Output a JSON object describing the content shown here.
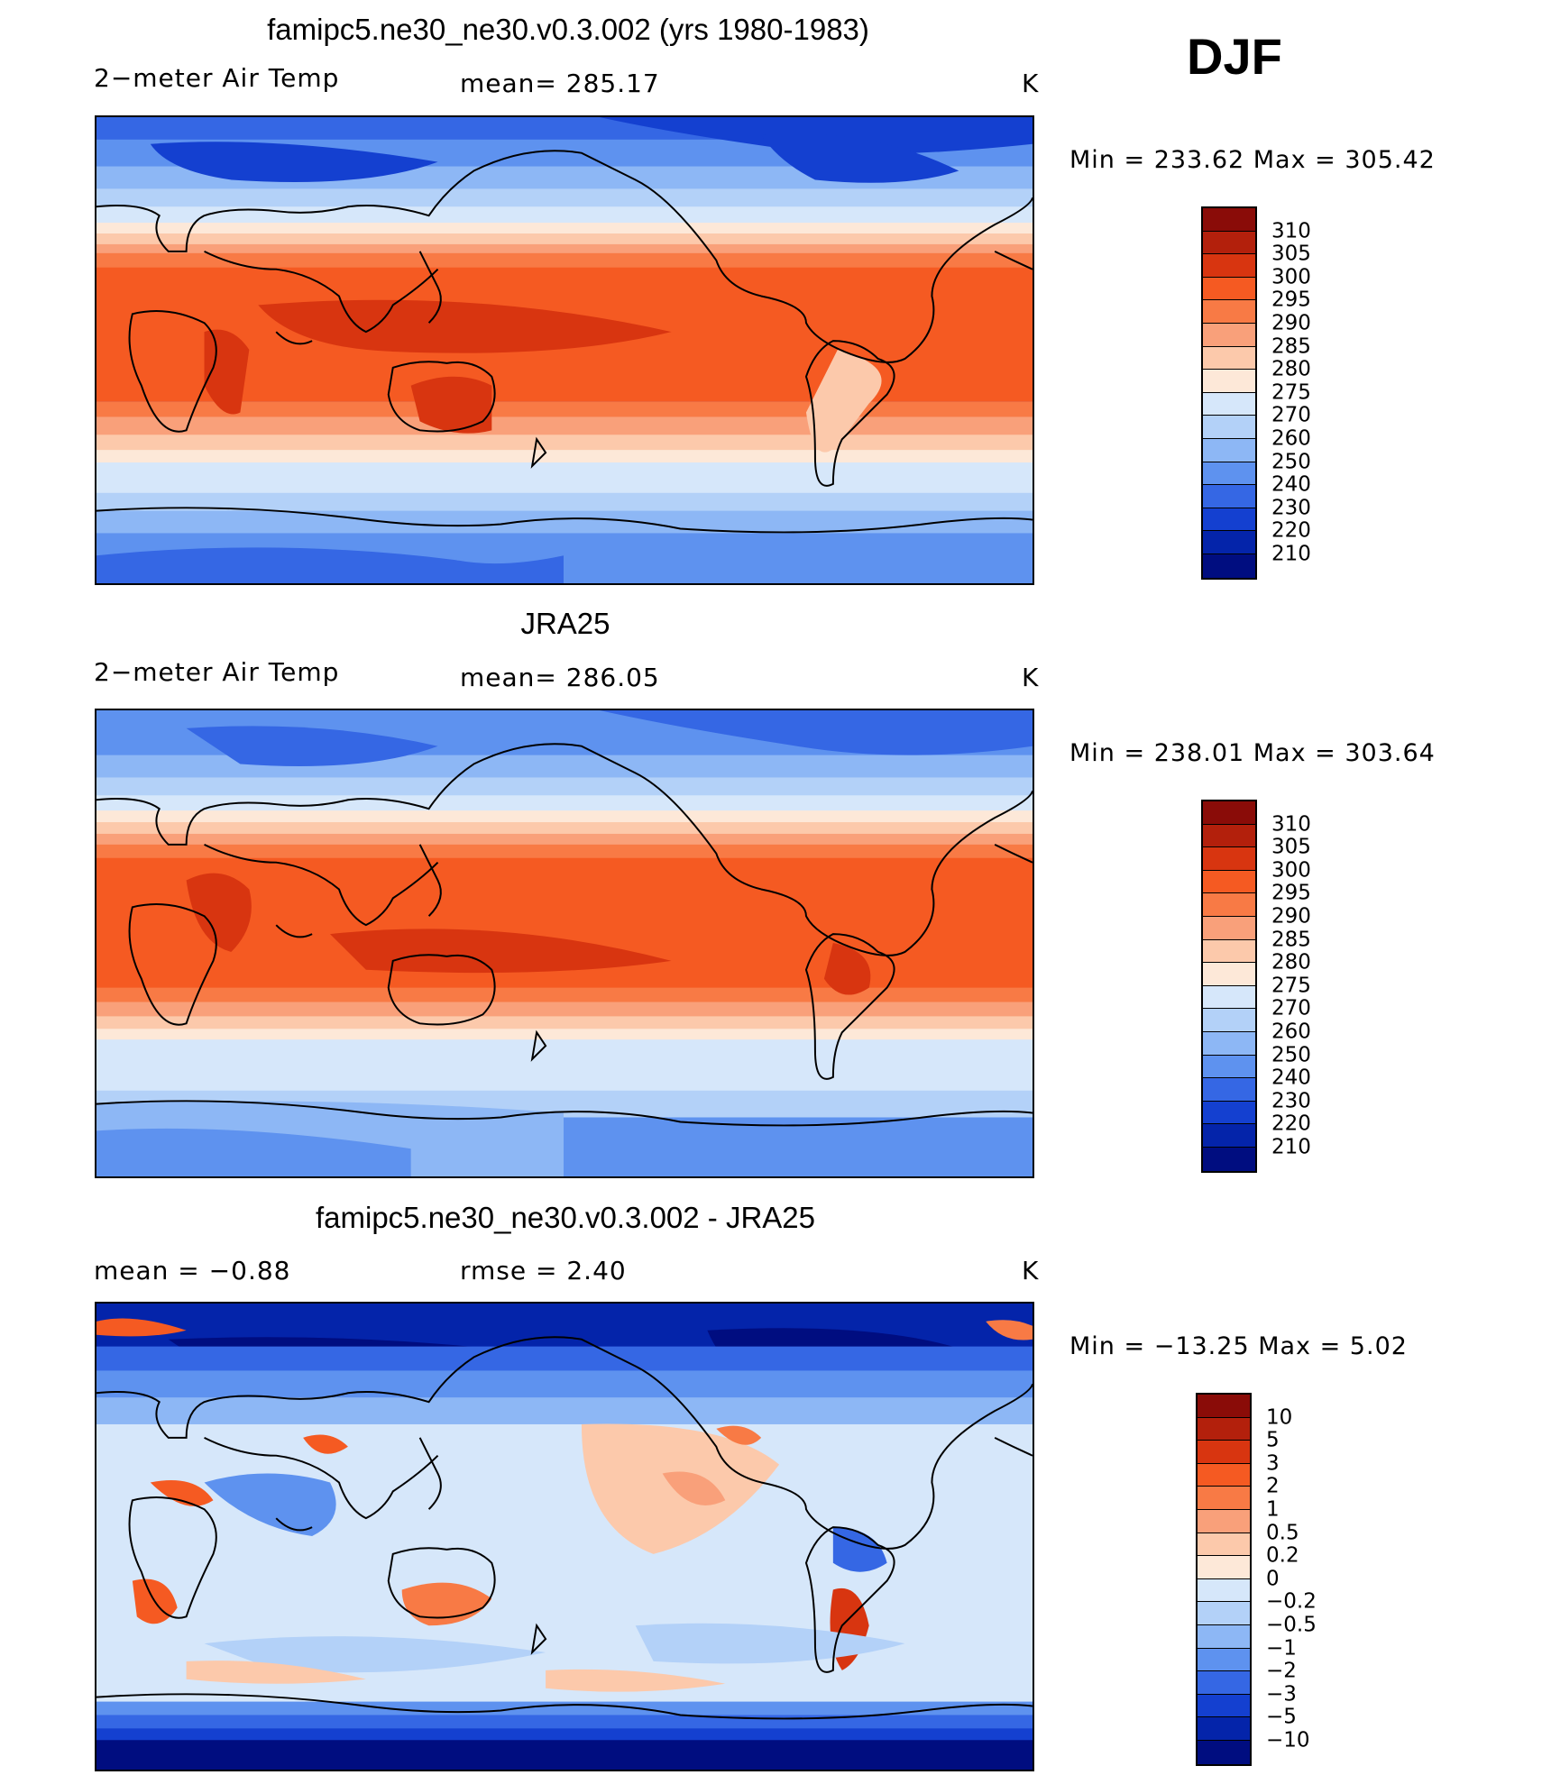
{
  "season": "DJF",
  "panels": [
    {
      "title": "famipc5.ne30_ne30.v0.3.002 (yrs 1980-1983)",
      "left": "2−meter Air Temp",
      "center": "mean=  285.17",
      "right": "K",
      "minmax": "Min  =  233.62  Max  =  305.42",
      "colorbar_labels": [
        "310",
        "305",
        "300",
        "295",
        "290",
        "285",
        "280",
        "275",
        "270",
        "260",
        "250",
        "240",
        "230",
        "220",
        "210"
      ]
    },
    {
      "title": "JRA25",
      "left": "2−meter Air Temp",
      "center": "mean=  286.05",
      "right": "K",
      "minmax": "Min  =  238.01  Max  =  303.64",
      "colorbar_labels": [
        "310",
        "305",
        "300",
        "295",
        "290",
        "285",
        "280",
        "275",
        "270",
        "260",
        "250",
        "240",
        "230",
        "220",
        "210"
      ]
    },
    {
      "title": "famipc5.ne30_ne30.v0.3.002 - JRA25",
      "left": "mean  =    −0.88",
      "center": "rmse  =     2.40",
      "right": "K",
      "minmax": "Min  =  −13.25  Max  =       5.02",
      "colorbar_labels": [
        "10",
        "5",
        "3",
        "2",
        "1",
        "0.5",
        "0.2",
        "0",
        "−0.2",
        "−0.5",
        "−1",
        "−2",
        "−3",
        "−5",
        "−10"
      ]
    }
  ],
  "colors": {
    "scale": [
      "#8a0c08",
      "#b3200c",
      "#d83510",
      "#f55a22",
      "#f87a45",
      "#f9a07a",
      "#fcc9ab",
      "#fde8d8",
      "#d6e7fa",
      "#b3d1f8",
      "#8db7f5",
      "#5e92ef",
      "#3567e4",
      "#1440d0",
      "#0424aa",
      "#000d80"
    ]
  }
}
